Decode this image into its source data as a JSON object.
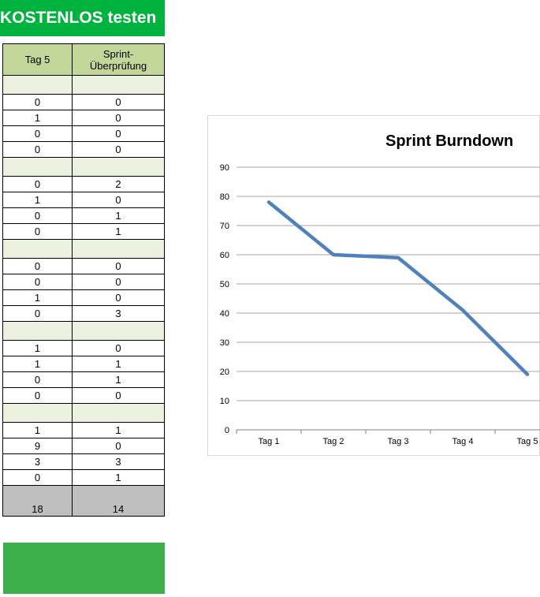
{
  "banner": {
    "text": "KOSTENLOS testen"
  },
  "table": {
    "headers": [
      "Tag 5",
      "Sprint-\nÜberprüfung"
    ],
    "sections": [
      {
        "rows": [
          [
            "0",
            "0"
          ],
          [
            "1",
            "0"
          ],
          [
            "0",
            "0"
          ],
          [
            "0",
            "0"
          ]
        ]
      },
      {
        "rows": [
          [
            "0",
            "2"
          ],
          [
            "1",
            "0"
          ],
          [
            "0",
            "1"
          ],
          [
            "0",
            "1"
          ]
        ]
      },
      {
        "rows": [
          [
            "0",
            "0"
          ],
          [
            "0",
            "0"
          ],
          [
            "1",
            "0"
          ],
          [
            "0",
            "3"
          ]
        ]
      },
      {
        "rows": [
          [
            "1",
            "0"
          ],
          [
            "1",
            "1"
          ],
          [
            "0",
            "1"
          ],
          [
            "0",
            "0"
          ]
        ]
      },
      {
        "rows": [
          [
            "1",
            "1"
          ],
          [
            "9",
            "0"
          ],
          [
            "3",
            "3"
          ],
          [
            "0",
            "1"
          ]
        ]
      }
    ],
    "totals": [
      "18",
      "14"
    ]
  },
  "chart_data": {
    "type": "line",
    "title": "Sprint Burndown",
    "categories": [
      "Tag 1",
      "Tag 2",
      "Tag 3",
      "Tag 4",
      "Tag 5"
    ],
    "series": [
      {
        "values": [
          78,
          60,
          59,
          41,
          19
        ],
        "color": "#4f81bd"
      }
    ],
    "ylim": [
      0,
      90
    ],
    "yticks": [
      0,
      10,
      20,
      30,
      40,
      50,
      60,
      70,
      80,
      90
    ],
    "grid": true,
    "xlabel": "",
    "ylabel": ""
  }
}
